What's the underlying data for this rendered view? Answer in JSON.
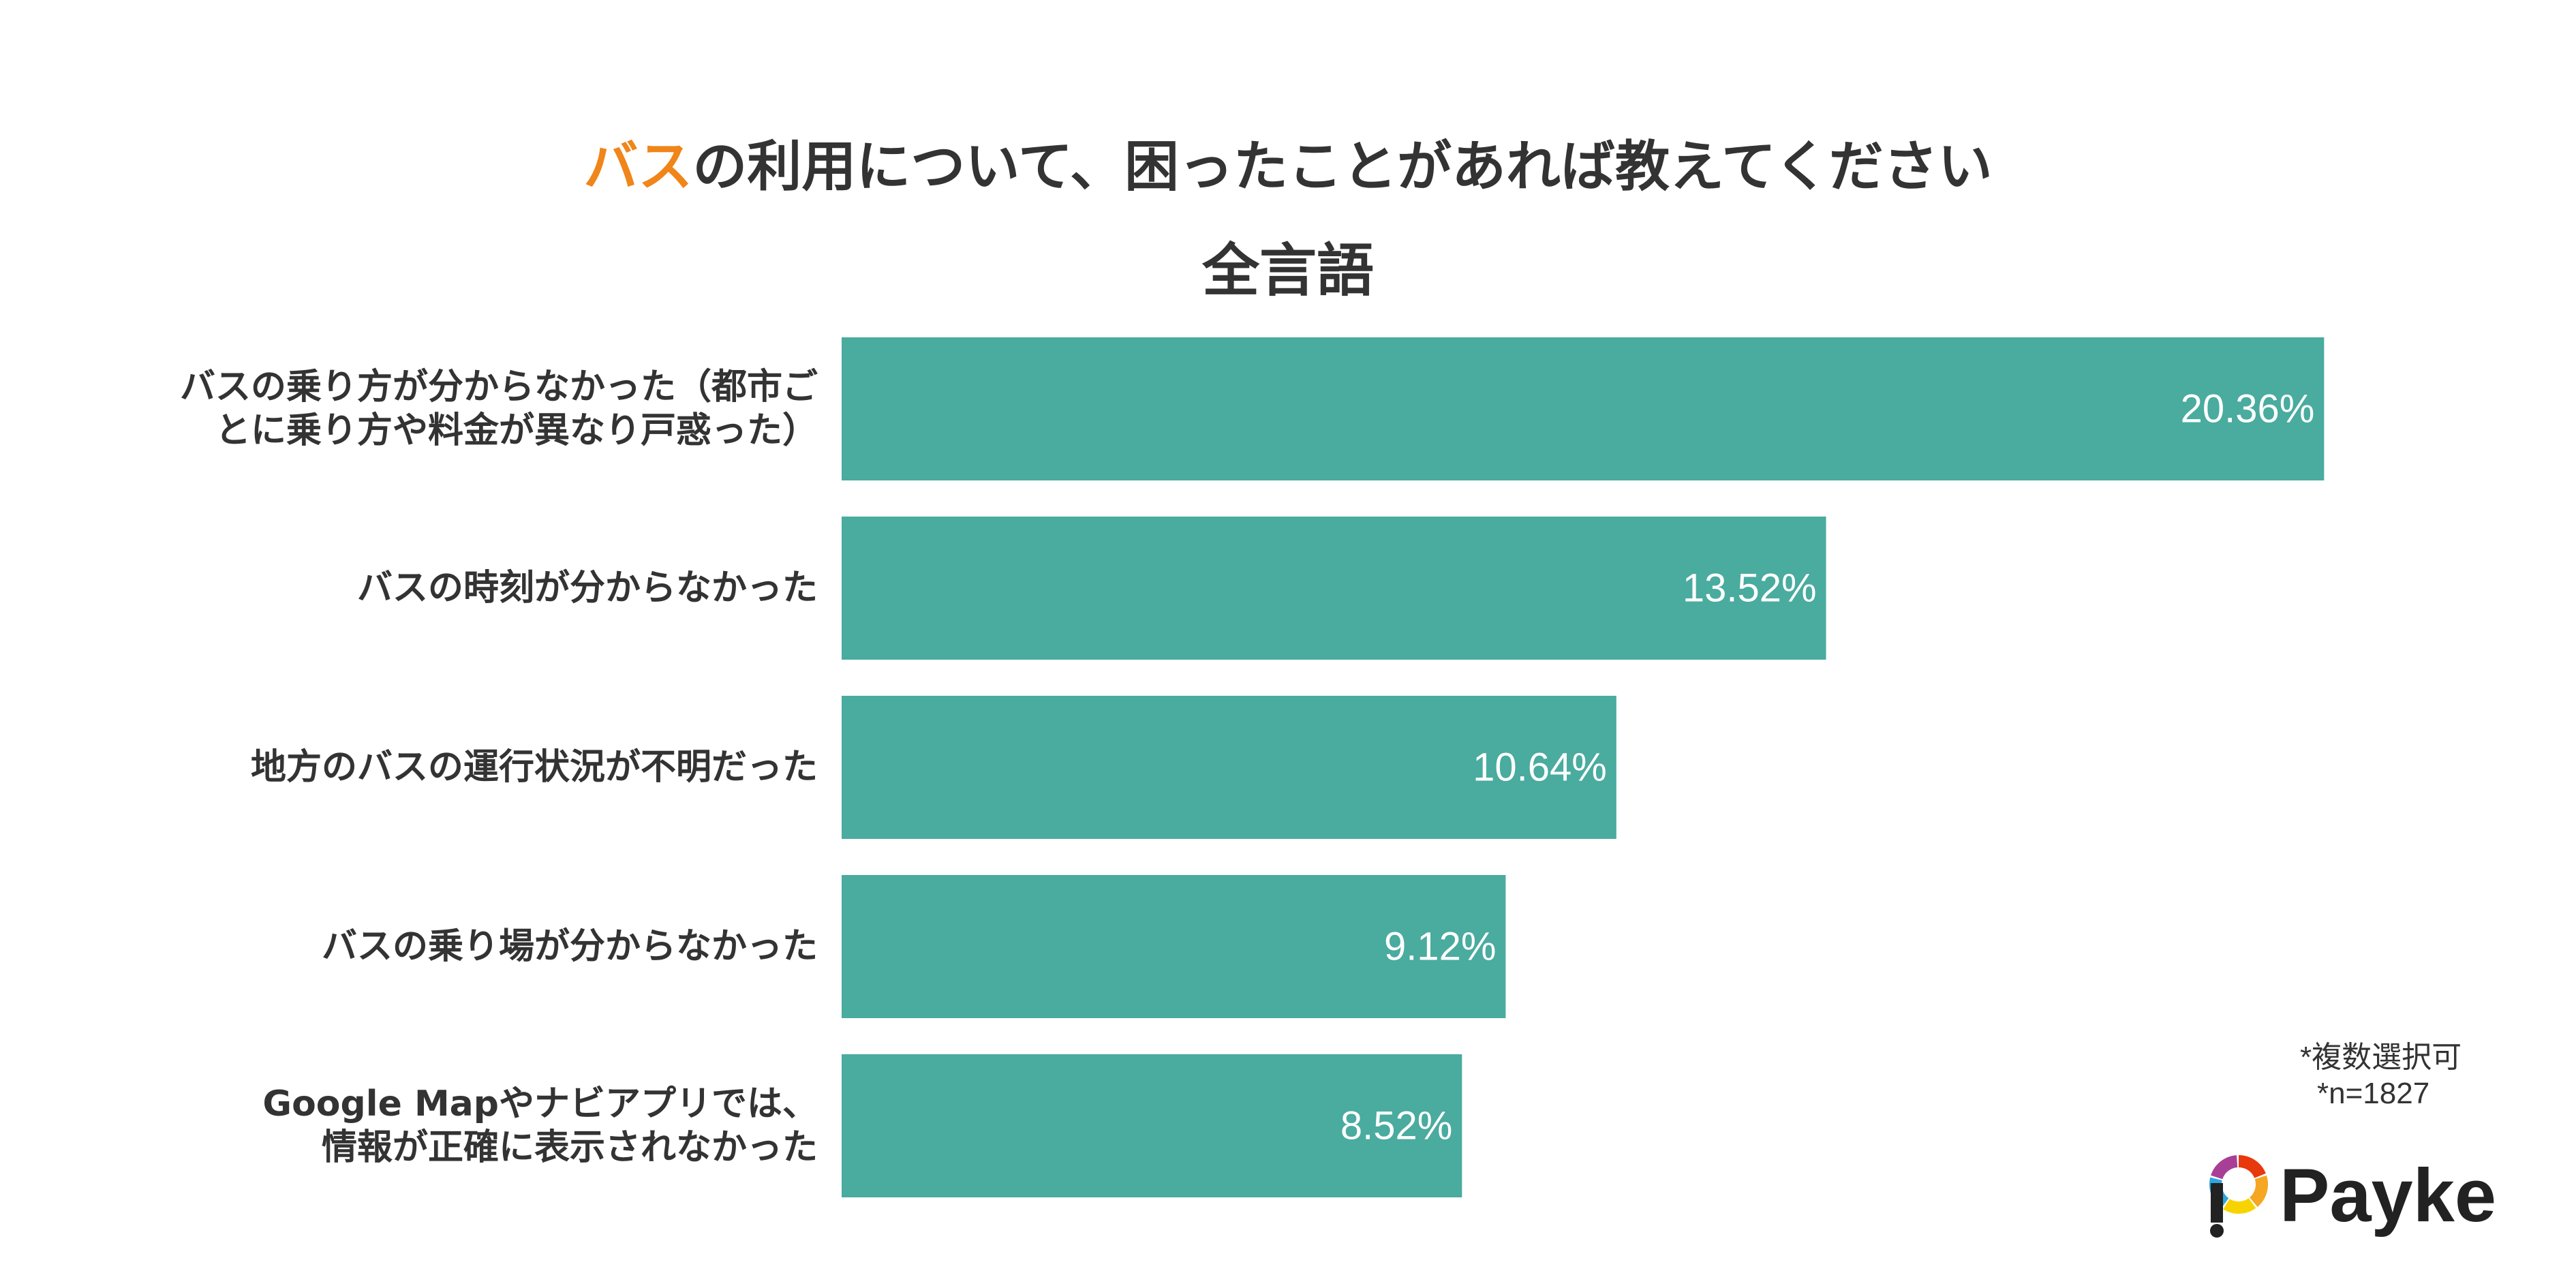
{
  "title": {
    "accent": "バス",
    "rest": "の利用について、困ったことがあれば教えてください",
    "accent_color": "#F08519"
  },
  "subtitle": "全言語",
  "chart_data": {
    "type": "bar",
    "orientation": "horizontal",
    "categories": [
      [
        "バスの乗り方が分からなかった（都市ご",
        "とに乗り方や料金が異なり戸惑った）"
      ],
      [
        "バスの時刻が分からなかった"
      ],
      [
        "地方のバスの運行状況が不明だった"
      ],
      [
        "バスの乗り場が分からなかった"
      ],
      [
        "Google Mapやナビアプリでは、",
        "情報が正確に表示されなかった"
      ]
    ],
    "values": [
      20.36,
      13.52,
      10.64,
      9.12,
      8.52
    ],
    "value_labels": [
      "20.36%",
      "13.52%",
      "10.64%",
      "9.12%",
      "8.52%"
    ],
    "xlim": [
      0,
      22.5
    ],
    "bar_color": "#4AAB9F",
    "label_color": "#FFFFFF",
    "grid": false,
    "legend": "none"
  },
  "notes": {
    "multiple": "*複数選択可",
    "sample": "*n=1827"
  },
  "logo": {
    "text": "Payke",
    "colors": [
      "#E8380D",
      "#F5A623",
      "#F7D400",
      "#2EA7E0",
      "#A93E97",
      "#222222"
    ]
  }
}
